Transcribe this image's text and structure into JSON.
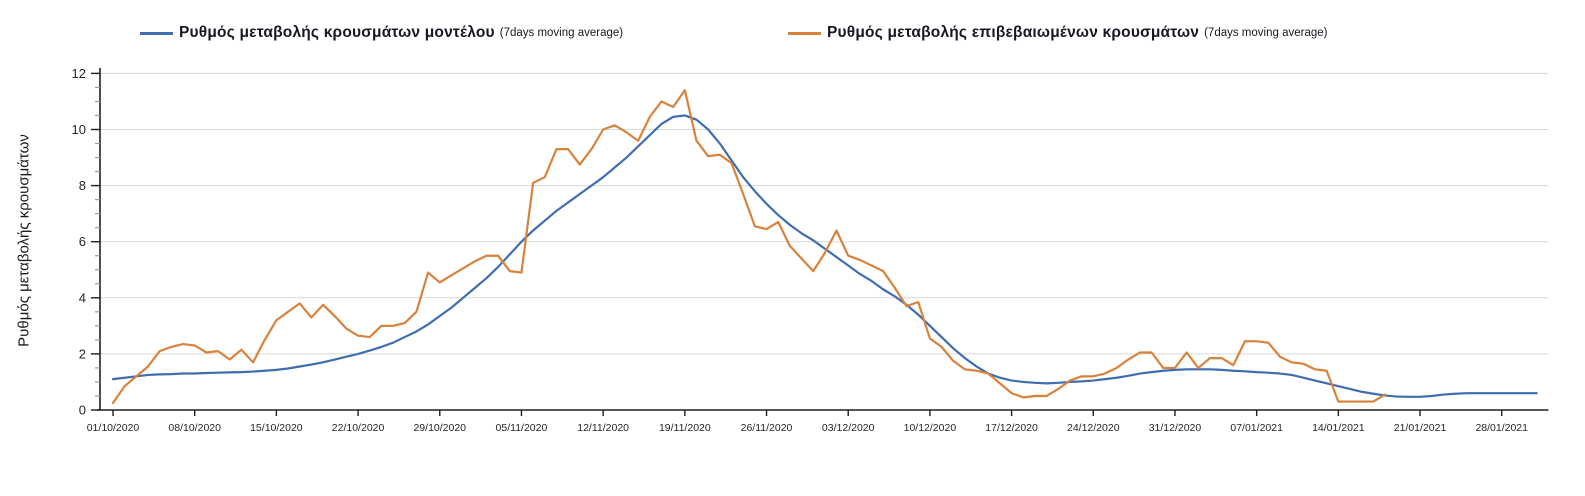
{
  "chart_data": {
    "type": "line",
    "title": "",
    "ylabel": "Ρυθμός μεταβολής κρουσμάτων",
    "xlabel": "",
    "ylim": [
      0,
      12
    ],
    "y_tick_step": 2,
    "y_minor_tick_step": 0.5,
    "grid": "horizontal-major",
    "legend_position": "top",
    "x_start_date": "01/10/2020",
    "x_tick_step_days": 7,
    "x_axis_extent_days": 123,
    "x_tick_labels": [
      "01/10/2020",
      "08/10/2020",
      "15/10/2020",
      "22/10/2020",
      "29/10/2020",
      "05/11/2020",
      "12/11/2020",
      "19/11/2020",
      "26/11/2020",
      "03/12/2020",
      "10/12/2020",
      "17/12/2020",
      "24/12/2020",
      "31/12/2020",
      "07/01/2021",
      "14/01/2021",
      "21/01/2021",
      "28/01/2021"
    ],
    "grid_color": "#d9d9d9",
    "axis_color": "#1f1f1f",
    "series": [
      {
        "name": "Ρυθμός μεταβολής κρουσμάτων μοντέλου",
        "suffix": "(7days moving average)",
        "color": "#3F6DB0",
        "start_day": 0,
        "values": [
          1.1,
          1.15,
          1.2,
          1.25,
          1.27,
          1.28,
          1.3,
          1.3,
          1.32,
          1.33,
          1.34,
          1.35,
          1.37,
          1.4,
          1.43,
          1.48,
          1.55,
          1.62,
          1.7,
          1.8,
          1.9,
          2.0,
          2.12,
          2.25,
          2.4,
          2.6,
          2.8,
          3.05,
          3.35,
          3.65,
          4.0,
          4.35,
          4.7,
          5.1,
          5.55,
          6.0,
          6.4,
          6.75,
          7.1,
          7.4,
          7.7,
          8.0,
          8.3,
          8.65,
          9.0,
          9.4,
          9.8,
          10.2,
          10.45,
          10.5,
          10.35,
          10.0,
          9.5,
          8.9,
          8.3,
          7.8,
          7.35,
          6.95,
          6.6,
          6.3,
          6.05,
          5.75,
          5.45,
          5.15,
          4.85,
          4.6,
          4.3,
          4.05,
          3.75,
          3.4,
          3.0,
          2.6,
          2.2,
          1.85,
          1.55,
          1.3,
          1.15,
          1.05,
          1.0,
          0.97,
          0.95,
          0.97,
          1.0,
          1.02,
          1.05,
          1.1,
          1.15,
          1.22,
          1.3,
          1.35,
          1.4,
          1.43,
          1.45,
          1.45,
          1.45,
          1.43,
          1.4,
          1.38,
          1.35,
          1.33,
          1.3,
          1.25,
          1.15,
          1.05,
          0.95,
          0.85,
          0.75,
          0.65,
          0.58,
          0.52,
          0.48,
          0.47,
          0.47,
          0.5,
          0.55,
          0.58,
          0.6,
          0.6,
          0.6,
          0.6,
          0.6,
          0.6,
          0.6
        ]
      },
      {
        "name": "Ρυθμός μεταβολής επιβεβαιωμένων κρουσμάτων",
        "suffix": "(7days moving average)",
        "color": "#D9823C",
        "start_day": 0,
        "values": [
          0.25,
          0.85,
          1.2,
          1.55,
          2.1,
          2.25,
          2.35,
          2.3,
          2.05,
          2.1,
          1.8,
          2.15,
          1.7,
          2.5,
          3.2,
          3.5,
          3.8,
          3.3,
          3.75,
          3.35,
          2.9,
          2.65,
          2.6,
          3.0,
          3.0,
          3.1,
          3.5,
          4.9,
          4.55,
          4.8,
          5.05,
          5.3,
          5.5,
          5.5,
          4.95,
          4.9,
          8.1,
          8.3,
          9.3,
          9.3,
          8.75,
          9.3,
          10.0,
          10.15,
          9.9,
          9.6,
          10.45,
          11.0,
          10.8,
          11.4,
          9.6,
          9.05,
          9.1,
          8.8,
          7.7,
          6.55,
          6.45,
          6.7,
          5.85,
          5.4,
          4.95,
          5.6,
          6.4,
          5.5,
          5.35,
          5.15,
          4.95,
          4.35,
          3.7,
          3.85,
          2.55,
          2.25,
          1.75,
          1.45,
          1.4,
          1.3,
          0.95,
          0.6,
          0.45,
          0.5,
          0.5,
          0.75,
          1.05,
          1.2,
          1.2,
          1.3,
          1.5,
          1.8,
          2.05,
          2.05,
          1.5,
          1.5,
          2.05,
          1.5,
          1.85,
          1.85,
          1.6,
          2.45,
          2.45,
          2.4,
          1.9,
          1.7,
          1.65,
          1.45,
          1.4,
          0.3,
          0.3,
          0.3,
          0.3,
          0.55
        ]
      }
    ]
  }
}
